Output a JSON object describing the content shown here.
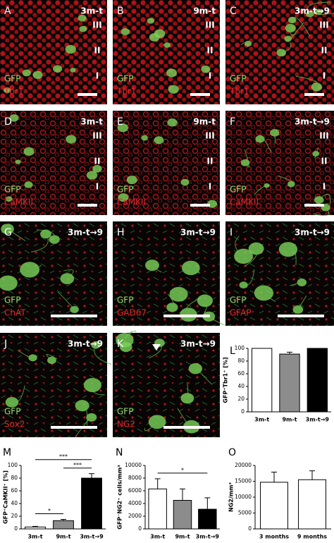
{
  "panels": [
    {
      "letter": "A",
      "time": "3m-t",
      "layers": [
        "III",
        "II",
        "I"
      ],
      "markers": [
        "GFP",
        "Tbr1"
      ]
    },
    {
      "letter": "B",
      "time": "9m-t",
      "layers": [
        "III",
        "II",
        "I"
      ],
      "markers": [
        "GFP",
        "Tbr1"
      ]
    },
    {
      "letter": "C",
      "time": "3m-t→9",
      "layers": [
        "III",
        "II",
        "I"
      ],
      "markers": [
        "GFP",
        "Tbr1"
      ]
    },
    {
      "letter": "D",
      "time": "3m-t",
      "layers": [
        "III",
        "II",
        "I"
      ],
      "markers": [
        "GFP",
        "CaMKII"
      ]
    },
    {
      "letter": "E",
      "time": "9m-t",
      "layers": [
        "III",
        "II",
        "I"
      ],
      "markers": [
        "GFP",
        "CaMKII"
      ]
    },
    {
      "letter": "F",
      "time": "3m-t→9",
      "layers": [
        "III",
        "II",
        "I"
      ],
      "markers": [
        "GFP",
        "CaMKII"
      ]
    },
    {
      "letter": "G",
      "time": "3m-t→9",
      "markers": [
        "GFP",
        "ChAT"
      ]
    },
    {
      "letter": "H",
      "time": "3m-t→9",
      "markers": [
        "GFP",
        "GAD67"
      ]
    },
    {
      "letter": "I",
      "time": "3m-t→9",
      "markers": [
        "GFP",
        "GFAP"
      ]
    },
    {
      "letter": "J",
      "time": "3m-t→9",
      "markers": [
        "GFP",
        "Sox2"
      ]
    },
    {
      "letter": "K",
      "time": "3m-t→9",
      "markers": [
        "GFP",
        "NG2"
      ]
    }
  ],
  "chart_data": [
    {
      "type": "bar",
      "letter": "L",
      "y_label": "GFP⁺Tbr1⁺ [%]",
      "categories": [
        "3m-t",
        "9m-t",
        "3m-t→9"
      ],
      "values": [
        100,
        91,
        100
      ],
      "errors": [
        0,
        3,
        0
      ],
      "colors": [
        "#ffffff",
        "#8c8c8c",
        "#000000"
      ],
      "ylim": [
        0,
        100
      ],
      "yticks": [
        0,
        20,
        40,
        60,
        80,
        100
      ]
    },
    {
      "type": "bar",
      "letter": "M",
      "y_label": "GFP⁺CaMKII⁺ [%]",
      "categories": [
        "3m-t",
        "9m-t",
        "3m-t→9"
      ],
      "values": [
        3,
        13,
        80
      ],
      "errors": [
        1,
        2,
        7
      ],
      "colors": [
        "#ffffff",
        "#8c8c8c",
        "#000000"
      ],
      "ylim": [
        0,
        100
      ],
      "yticks": [
        0,
        20,
        40,
        60,
        80,
        100
      ],
      "significance": [
        {
          "text": "*",
          "pair": [
            0,
            1
          ]
        },
        {
          "text": "***",
          "pair": [
            1,
            2
          ]
        },
        {
          "text": "***",
          "pair": [
            0,
            2
          ]
        }
      ]
    },
    {
      "type": "bar",
      "letter": "N",
      "y_label": "GFP⁻NG2⁺ cells/mm³",
      "categories": [
        "3m-t",
        "9m-t",
        "3m-t→9"
      ],
      "values": [
        6300,
        4500,
        3100
      ],
      "errors": [
        1600,
        1800,
        1800
      ],
      "colors": [
        "#ffffff",
        "#8c8c8c",
        "#000000"
      ],
      "ylim": [
        0,
        10000
      ],
      "yticks": [
        0,
        2000,
        4000,
        6000,
        8000,
        10000
      ],
      "significance": [
        {
          "text": "*",
          "pair": [
            0,
            2
          ]
        }
      ]
    },
    {
      "type": "bar",
      "letter": "O",
      "y_label": "NG2/mm³",
      "categories": [
        "3 months",
        "9 months"
      ],
      "values": [
        14700,
        15500
      ],
      "errors": [
        3200,
        2800
      ],
      "colors": [
        "#ffffff",
        "#ffffff"
      ],
      "ylim": [
        0,
        20000
      ],
      "yticks": [
        0,
        5000,
        10000,
        15000,
        20000
      ]
    }
  ]
}
